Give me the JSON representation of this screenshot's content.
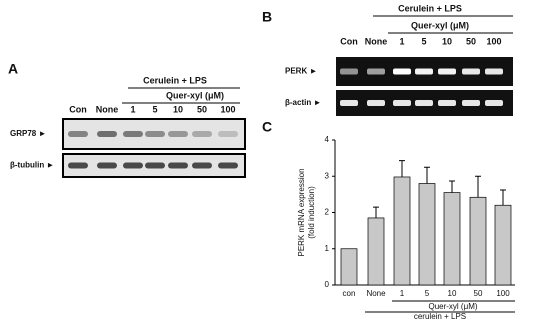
{
  "panel_a": {
    "label": "A",
    "header": "Cerulein + LPS",
    "subheader": "Quer-xyl (μM)",
    "lanes": [
      "Con",
      "None",
      "1",
      "5",
      "10",
      "50",
      "100"
    ],
    "rows": [
      "GRP78 ►",
      "β-tubulin ►"
    ]
  },
  "panel_b": {
    "label": "B",
    "header": "Cerulein + LPS",
    "subheader": "Quer-xyl (μM)",
    "lanes": [
      "Con",
      "None",
      "1",
      "5",
      "10",
      "50",
      "100"
    ],
    "rows": [
      "PERK ►",
      "β-actin ►"
    ]
  },
  "chart_data": {
    "type": "bar",
    "label": "C",
    "y_label": [
      "PERK mRNA expression",
      "(fold induction)"
    ],
    "categories": [
      "con",
      "None",
      "1",
      "5",
      "10",
      "50",
      "100"
    ],
    "values": [
      1,
      1.85,
      2.98,
      2.8,
      2.55,
      2.42,
      2.2
    ],
    "errors": [
      null,
      0.3,
      0.45,
      0.45,
      0.32,
      0.58,
      0.42
    ],
    "color": "#c8c8c8",
    "ylim": [
      0,
      4
    ],
    "yticks": [
      0,
      1,
      2,
      3,
      4
    ],
    "group_labels": [
      "Quer-xyl (μM)",
      "cerulein + LPS"
    ]
  }
}
